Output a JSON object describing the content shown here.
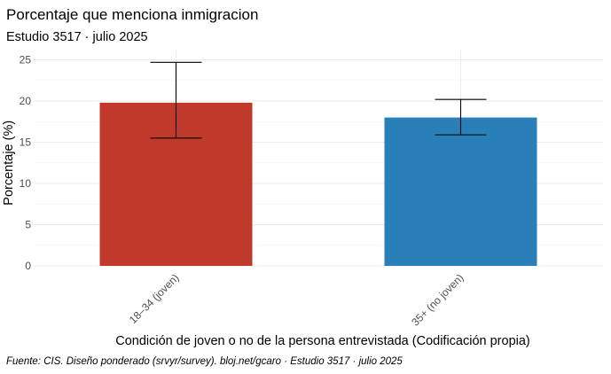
{
  "chart_data": {
    "type": "bar",
    "title": "Porcentaje que menciona inmigracion",
    "subtitle": "Estudio 3517 · julio 2025",
    "caption": "Fuente: CIS. Diseño ponderado (srvyr/survey). bloj.net/gcaro · Estudio 3517 · julio 2025",
    "xlabel": "Condición de joven o no de la persona entrevistada (Codificación propia)",
    "ylabel": "Porcentaje (%)",
    "categories": [
      "18–34 (joven)",
      "35+ (no joven)"
    ],
    "values": [
      19.8,
      18.0
    ],
    "error_low": [
      15.5,
      15.9
    ],
    "error_high": [
      24.7,
      20.2
    ],
    "colors": [
      "#C0392B",
      "#2980B9"
    ],
    "ylim": [
      0,
      25
    ],
    "yticks": [
      "0",
      "5",
      "10",
      "15",
      "20",
      "25"
    ],
    "grid": true
  }
}
